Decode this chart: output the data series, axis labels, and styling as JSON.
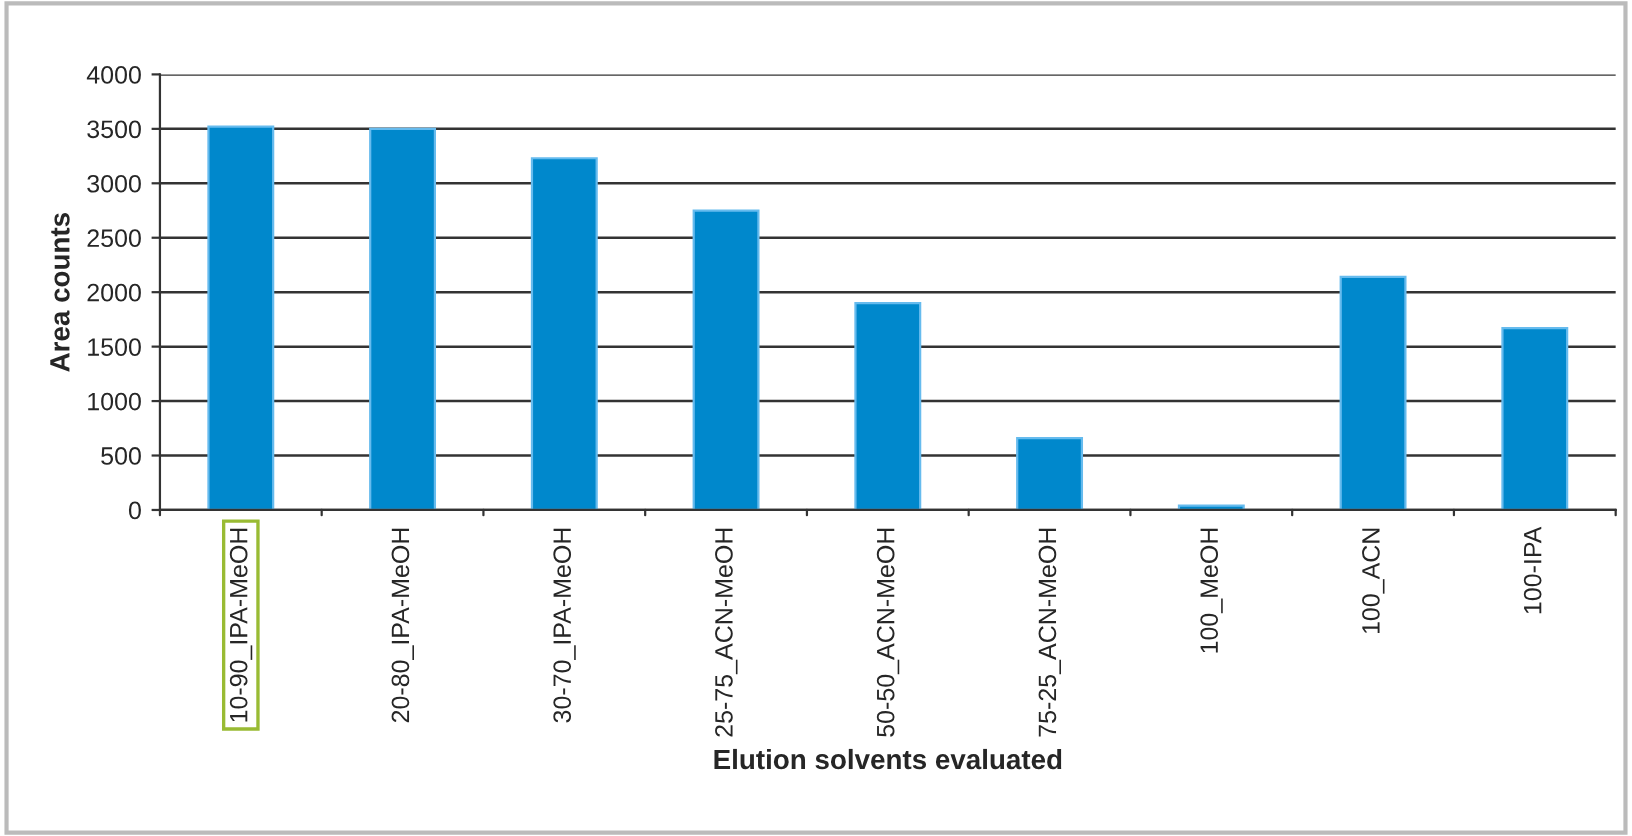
{
  "chart_data": {
    "type": "bar",
    "xlabel": "Elution solvents evaluated",
    "ylabel": "Area counts",
    "categories": [
      "10-90_IPA-MeOH",
      "20-80_IPA-MeOH",
      "30-70_IPA-MeOH",
      "25-75_ACN-MeOH",
      "50-50_ACN-MeOH",
      "75-25_ACN-MeOH",
      "100_MeOH",
      "100_ACN",
      "100-IPA"
    ],
    "values": [
      3520,
      3500,
      3230,
      2750,
      1900,
      660,
      40,
      2140,
      1670
    ],
    "color": "#0088cc",
    "ylim": [
      0,
      4000
    ],
    "yticks": [
      0,
      500,
      1000,
      1500,
      2000,
      2500,
      3000,
      3500,
      4000
    ],
    "grid": "y",
    "legend": false
  }
}
